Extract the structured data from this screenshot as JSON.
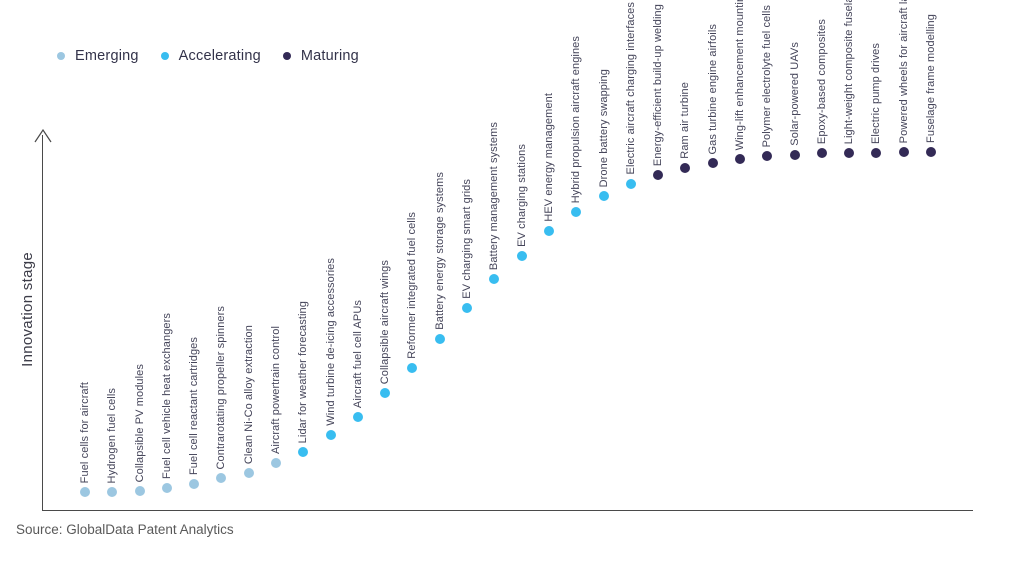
{
  "legend": [
    {
      "label": "Emerging",
      "color": "#9CC7E1"
    },
    {
      "label": "Accelerating",
      "color": "#38BDF0"
    },
    {
      "label": "Maturing",
      "color": "#332A56"
    }
  ],
  "colors": {
    "Emerging": "#9CC7E1",
    "Accelerating": "#38BDF0",
    "Maturing": "#332A56"
  },
  "footer": {
    "source": "Source: GlobalData Patent Analytics"
  },
  "chart_data": {
    "type": "scatter",
    "title": "",
    "xlabel": "",
    "ylabel": "Innovation stage",
    "grid": false,
    "legend_position": "top-left",
    "y_axis": {
      "label": "Innovation stage",
      "ticks": "none",
      "arrow": true,
      "range_note": "stage_score 0-100, unlabeled axis"
    },
    "items": [
      {
        "label": "Fuel cells for aircraft",
        "stage": "Emerging",
        "stage_score": 5.0
      },
      {
        "label": "Hydrogen fuel cells",
        "stage": "Emerging",
        "stage_score": 5.0
      },
      {
        "label": "Collapsible PV modules",
        "stage": "Emerging",
        "stage_score": 5.3
      },
      {
        "label": "Fuel cell vehicle heat exchangers",
        "stage": "Emerging",
        "stage_score": 6.1
      },
      {
        "label": "Fuel cell reactant cartridges",
        "stage": "Emerging",
        "stage_score": 7.3
      },
      {
        "label": "Contrarotating propeller spinners",
        "stage": "Emerging",
        "stage_score": 8.9
      },
      {
        "label": "Clean Ni-Co alloy extraction",
        "stage": "Emerging",
        "stage_score": 10.3
      },
      {
        "label": "Aircraft powertrain control",
        "stage": "Emerging",
        "stage_score": 13.1
      },
      {
        "label": "Lidar for weather forecasting",
        "stage": "Accelerating",
        "stage_score": 16.2
      },
      {
        "label": "Wind turbine de-icing accessories",
        "stage": "Accelerating",
        "stage_score": 20.9
      },
      {
        "label": "Aircraft fuel cell APUs",
        "stage": "Accelerating",
        "stage_score": 26.0
      },
      {
        "label": "Collapsible aircraft wings",
        "stage": "Accelerating",
        "stage_score": 32.7
      },
      {
        "label": "Reformer integrated fuel cells",
        "stage": "Accelerating",
        "stage_score": 39.7
      },
      {
        "label": "Battery energy storage systems",
        "stage": "Accelerating",
        "stage_score": 47.8
      },
      {
        "label": "EV charging smart grids",
        "stage": "Accelerating",
        "stage_score": 56.4
      },
      {
        "label": "Battery management systems",
        "stage": "Accelerating",
        "stage_score": 64.5
      },
      {
        "label": "EV charging stations",
        "stage": "Accelerating",
        "stage_score": 70.9
      },
      {
        "label": "HEV energy management",
        "stage": "Accelerating",
        "stage_score": 77.9
      },
      {
        "label": "Hybrid propulsion aircraft engines",
        "stage": "Accelerating",
        "stage_score": 83.2
      },
      {
        "label": "Drone battery swapping",
        "stage": "Accelerating",
        "stage_score": 87.7
      },
      {
        "label": "Electric aircraft charging interfaces",
        "stage": "Accelerating",
        "stage_score": 91.1
      },
      {
        "label": "Energy-efficient build-up welding",
        "stage": "Maturing",
        "stage_score": 93.6
      },
      {
        "label": "Ram air turbine",
        "stage": "Maturing",
        "stage_score": 95.5
      },
      {
        "label": "Gas turbine engine airfoils",
        "stage": "Maturing",
        "stage_score": 96.9
      },
      {
        "label": "Wing-lift enhancement mountings",
        "stage": "Maturing",
        "stage_score": 98.0
      },
      {
        "label": "Polymer electrolyte fuel cells",
        "stage": "Maturing",
        "stage_score": 98.9
      },
      {
        "label": "Solar-powered UAVs",
        "stage": "Maturing",
        "stage_score": 99.2
      },
      {
        "label": "Epoxy-based composites",
        "stage": "Maturing",
        "stage_score": 99.7
      },
      {
        "label": "Light-weight composite fuselage",
        "stage": "Maturing",
        "stage_score": 99.7
      },
      {
        "label": "Electric pump drives",
        "stage": "Maturing",
        "stage_score": 99.7
      },
      {
        "label": "Powered wheels for aircraft landing",
        "stage": "Maturing",
        "stage_score": 100
      },
      {
        "label": "Fuselage frame modelling",
        "stage": "Maturing",
        "stage_score": 100
      }
    ]
  }
}
